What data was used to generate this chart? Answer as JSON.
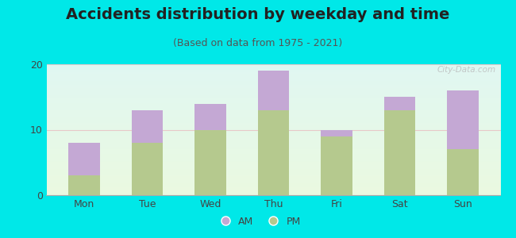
{
  "title": "Accidents distribution by weekday and time",
  "subtitle": "(Based on data from 1975 - 2021)",
  "categories": [
    "Mon",
    "Tue",
    "Wed",
    "Thu",
    "Fri",
    "Sat",
    "Sun"
  ],
  "pm_values": [
    3,
    8,
    10,
    13,
    9,
    13,
    7
  ],
  "am_values": [
    5,
    5,
    4,
    6,
    1,
    2,
    9
  ],
  "am_color": "#c4a8d4",
  "pm_color": "#b5c98e",
  "background_color": "#00e8e8",
  "ylim": [
    0,
    20
  ],
  "yticks": [
    0,
    10,
    20
  ],
  "grid_color": "#e8c8c8",
  "title_fontsize": 14,
  "subtitle_fontsize": 9,
  "tick_fontsize": 9,
  "legend_fontsize": 9,
  "bar_width": 0.5,
  "watermark": "City-Data.com"
}
